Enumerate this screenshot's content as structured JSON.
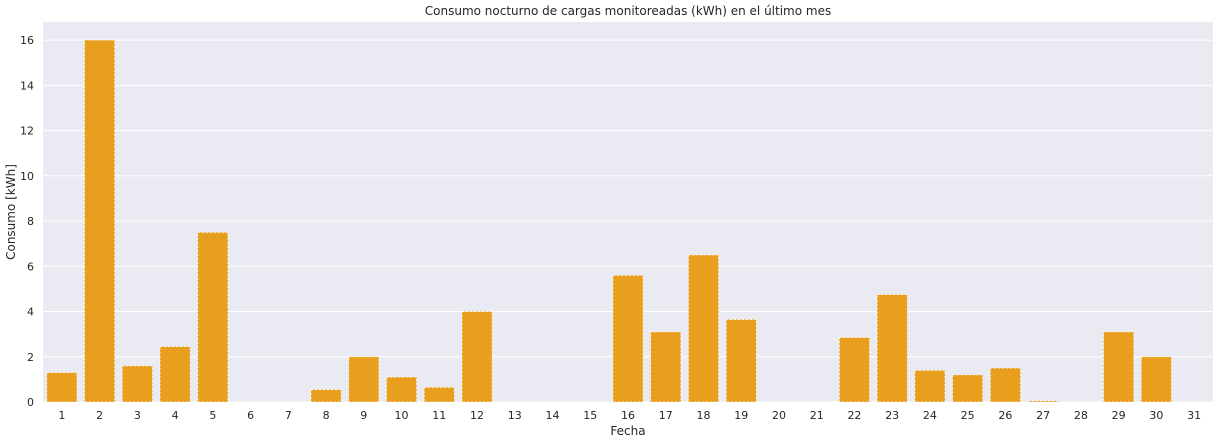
{
  "chart_data": {
    "type": "bar",
    "title": "Consumo nocturno de cargas monitoreadas (kWh) en el último mes",
    "xlabel": "Fecha",
    "ylabel": "Consumo [kWh]",
    "categories": [
      "1",
      "2",
      "3",
      "4",
      "5",
      "6",
      "7",
      "8",
      "9",
      "10",
      "11",
      "12",
      "13",
      "14",
      "15",
      "16",
      "17",
      "18",
      "19",
      "20",
      "21",
      "22",
      "23",
      "24",
      "25",
      "26",
      "27",
      "28",
      "29",
      "30",
      "31"
    ],
    "values": [
      1.3,
      16.0,
      1.6,
      2.45,
      7.5,
      0,
      0,
      0.55,
      2.0,
      1.1,
      0.65,
      4.0,
      0,
      0,
      0,
      5.6,
      3.1,
      6.5,
      3.65,
      0,
      0,
      2.85,
      4.75,
      1.4,
      1.2,
      1.5,
      0.05,
      0,
      3.1,
      2.0,
      0
    ],
    "ylim": [
      0,
      16.8
    ],
    "yticks": [
      "0",
      "2",
      "4",
      "6",
      "8",
      "10",
      "12",
      "14",
      "16"
    ],
    "grid": true,
    "colors": {
      "bar": "#e89f1e",
      "plot_background": "#eaeaf2",
      "grid": "#ffffff"
    }
  }
}
